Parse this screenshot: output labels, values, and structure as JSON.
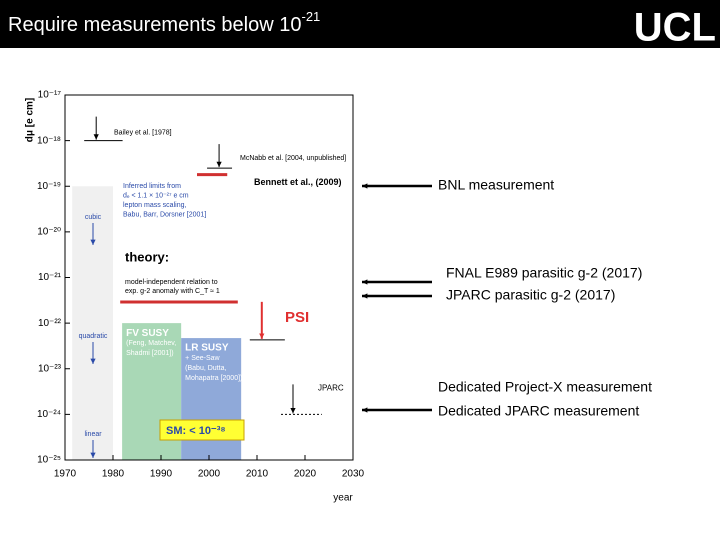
{
  "slide": {
    "title": "Require measurements below 10",
    "title_exp": "-21",
    "logo": "UCL"
  },
  "notes": [
    "BNL measurement",
    "FNAL E989 parasitic g-2 (2017)",
    "JPARC parasitic g-2 (2017)",
    "Dedicated Project-X measurement",
    "Dedicated JPARC measurement"
  ],
  "chart_data": {
    "type": "limits",
    "xlabel": "year",
    "ylabel": "dμ [e cm]",
    "log_y": true,
    "xlim": [
      1970,
      2030
    ],
    "xticks": [
      1970,
      1980,
      1990,
      2000,
      2010,
      2020,
      2030
    ],
    "ylim": [
      1e-25,
      1e-17
    ],
    "yticks": [
      {
        "value": 1e-17,
        "label": "10⁻¹⁷"
      },
      {
        "value": 1e-18,
        "label": "10⁻¹⁸"
      },
      {
        "value": 1e-19,
        "label": "10⁻¹⁹"
      },
      {
        "value": 1e-20,
        "label": "10⁻²⁰"
      },
      {
        "value": 1e-21,
        "label": "10⁻²¹"
      },
      {
        "value": 1e-22,
        "label": "10⁻²²"
      },
      {
        "value": 1e-23,
        "label": "10⁻²³"
      },
      {
        "value": 1e-24,
        "label": "10⁻²⁴"
      },
      {
        "value": 1e-25,
        "label": "10⁻²⁵"
      }
    ],
    "regions": [
      {
        "x": [
          1971.5,
          1980
        ],
        "y": [
          1e-25,
          1e-19
        ],
        "color": "#f0f0f0",
        "labels": []
      },
      {
        "x": [
          1981.9,
          1994.2
        ],
        "y": [
          1e-25,
          1e-22
        ],
        "color": "#a9d8b6",
        "labels": [
          "FV SUSY",
          "(Feng, Matchev,",
          "Shadmi [2001])"
        ]
      },
      {
        "x": [
          1994.2,
          2006.7
        ],
        "y": [
          1e-25,
          4.7e-23
        ],
        "color": "#8fa9d9",
        "labels": [
          "LR SUSY",
          "+ See-Saw",
          "(Babu, Dutta,",
          "Mohapatra [2000])"
        ]
      }
    ],
    "limits": [
      {
        "label": "Bailey et al. [1978]",
        "x": [
          1974,
          1982
        ],
        "value": 1e-18,
        "color": "#000000",
        "arrow": true
      },
      {
        "label": "McNabb et al. [2004, unpublished]",
        "x": [
          1999.6,
          2004.8
        ],
        "value": 2.5e-19,
        "color": "#000000",
        "arrow": true
      },
      {
        "label": "Bennett et al., (2009)",
        "x": [
          1997.5,
          2003.8
        ],
        "value": 1.8e-19,
        "color": "#d03030",
        "arrow": false
      },
      {
        "x": [
          1981.5,
          2006
        ],
        "value": 2.9e-22,
        "color": "#d03030",
        "arrow": false
      },
      {
        "label": "PSI",
        "x": [
          2008.5,
          2015.8
        ],
        "value": 4.3e-23,
        "color": "#000000",
        "arrow": true,
        "arrow_color": "#e03030"
      },
      {
        "label": "JPARC",
        "x": [
          2015,
          2023.5
        ],
        "value": 1e-24,
        "color": "#000000",
        "arrow": true,
        "dotted": true
      }
    ],
    "texts": {
      "inferred": [
        "Inferred limits from",
        "dₑ < 1.1 × 10⁻²⁷ e cm",
        "lepton mass scaling,",
        "Babu, Barr, Dorsner [2001]"
      ],
      "scaling": [
        "cubic",
        "quadratic",
        "linear"
      ],
      "theory": "theory:",
      "theory_note": [
        "model-independent relation to",
        "exp. g-2 anomaly with C_T ≈ 1"
      ],
      "sm": "SM: < 10⁻³⁸"
    }
  }
}
